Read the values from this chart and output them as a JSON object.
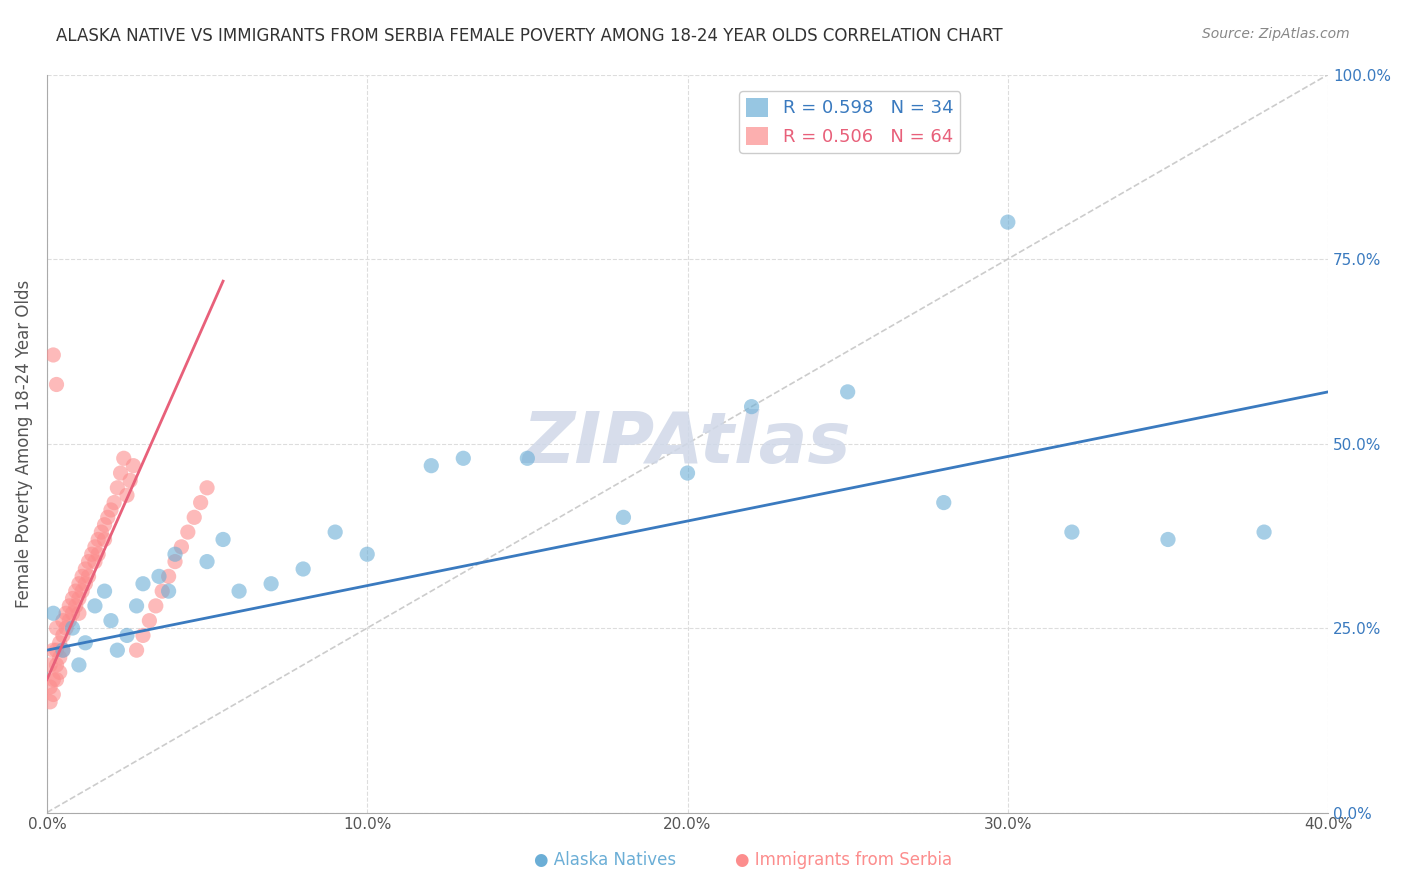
{
  "title": "ALASKA NATIVE VS IMMIGRANTS FROM SERBIA FEMALE POVERTY AMONG 18-24 YEAR OLDS CORRELATION CHART",
  "source": "Source: ZipAtlas.com",
  "ylabel": "Female Poverty Among 18-24 Year Olds",
  "xlabel": "",
  "xlim": [
    0.0,
    0.4
  ],
  "ylim": [
    0.0,
    1.0
  ],
  "xticks": [
    0.0,
    0.1,
    0.2,
    0.3,
    0.4
  ],
  "xtick_labels": [
    "0.0%",
    "10.0%",
    "20.0%",
    "30.0%",
    "40.0%"
  ],
  "yticks": [
    0.0,
    0.25,
    0.5,
    0.75,
    1.0
  ],
  "ytick_labels": [
    "0.0%",
    "25.0%",
    "50.0%",
    "75.0%",
    "100.0%"
  ],
  "blue_color": "#6baed6",
  "pink_color": "#fc8d8d",
  "blue_R": 0.598,
  "blue_N": 34,
  "pink_R": 0.506,
  "pink_N": 64,
  "blue_scatter_x": [
    0.002,
    0.005,
    0.008,
    0.01,
    0.012,
    0.015,
    0.018,
    0.02,
    0.022,
    0.025,
    0.028,
    0.03,
    0.035,
    0.038,
    0.04,
    0.05,
    0.055,
    0.06,
    0.07,
    0.08,
    0.09,
    0.1,
    0.12,
    0.13,
    0.15,
    0.18,
    0.2,
    0.22,
    0.25,
    0.28,
    0.32,
    0.35,
    0.38,
    0.3
  ],
  "blue_scatter_y": [
    0.27,
    0.22,
    0.25,
    0.2,
    0.23,
    0.28,
    0.3,
    0.26,
    0.22,
    0.24,
    0.28,
    0.31,
    0.32,
    0.3,
    0.35,
    0.34,
    0.37,
    0.3,
    0.31,
    0.33,
    0.38,
    0.35,
    0.47,
    0.48,
    0.48,
    0.4,
    0.46,
    0.55,
    0.57,
    0.42,
    0.38,
    0.37,
    0.38,
    0.8
  ],
  "pink_scatter_x": [
    0.001,
    0.001,
    0.001,
    0.002,
    0.002,
    0.002,
    0.003,
    0.003,
    0.003,
    0.003,
    0.004,
    0.004,
    0.004,
    0.005,
    0.005,
    0.005,
    0.006,
    0.006,
    0.007,
    0.007,
    0.008,
    0.008,
    0.009,
    0.009,
    0.01,
    0.01,
    0.01,
    0.011,
    0.011,
    0.012,
    0.012,
    0.013,
    0.013,
    0.014,
    0.015,
    0.015,
    0.016,
    0.016,
    0.017,
    0.018,
    0.018,
    0.019,
    0.02,
    0.021,
    0.022,
    0.023,
    0.024,
    0.025,
    0.026,
    0.027,
    0.028,
    0.03,
    0.032,
    0.034,
    0.036,
    0.038,
    0.04,
    0.042,
    0.044,
    0.046,
    0.048,
    0.05,
    0.002,
    0.003
  ],
  "pink_scatter_y": [
    0.2,
    0.17,
    0.15,
    0.22,
    0.18,
    0.16,
    0.25,
    0.22,
    0.2,
    0.18,
    0.23,
    0.21,
    0.19,
    0.26,
    0.24,
    0.22,
    0.27,
    0.25,
    0.28,
    0.26,
    0.29,
    0.27,
    0.3,
    0.28,
    0.31,
    0.29,
    0.27,
    0.32,
    0.3,
    0.33,
    0.31,
    0.34,
    0.32,
    0.35,
    0.36,
    0.34,
    0.37,
    0.35,
    0.38,
    0.39,
    0.37,
    0.4,
    0.41,
    0.42,
    0.44,
    0.46,
    0.48,
    0.43,
    0.45,
    0.47,
    0.22,
    0.24,
    0.26,
    0.28,
    0.3,
    0.32,
    0.34,
    0.36,
    0.38,
    0.4,
    0.42,
    0.44,
    0.62,
    0.58
  ],
  "watermark": "ZIPAtlas",
  "watermark_color": "#d0d8e8",
  "blue_line_x": [
    0.0,
    0.4
  ],
  "blue_line_y": [
    0.22,
    0.57
  ],
  "pink_line_x": [
    0.0,
    0.055
  ],
  "pink_line_y": [
    0.18,
    0.72
  ],
  "ref_line_x": [
    0.0,
    0.4
  ],
  "ref_line_y": [
    0.0,
    1.0
  ]
}
